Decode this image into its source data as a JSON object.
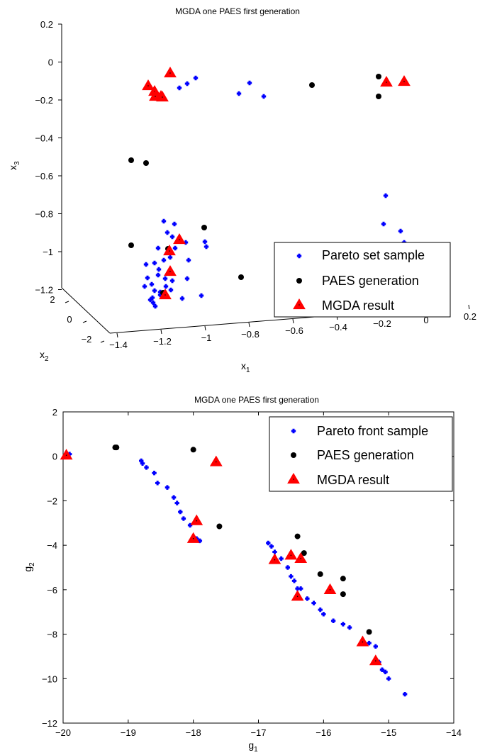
{
  "chart_data": [
    {
      "type": "scatter",
      "title": "MGDA one PAES first generation",
      "xlabel": "x",
      "xlabel_sub": "1",
      "ylabel": "x",
      "ylabel_sub": "2",
      "zlabel": "x",
      "zlabel_sub": "3",
      "xticks": [
        "−1.4",
        "−1.2",
        "−1",
        "−0.8",
        "−0.6",
        "−0.4",
        "−0.2",
        "0",
        "0.2"
      ],
      "yticks": [
        "2",
        "0",
        "−2"
      ],
      "zticks": [
        "0.2",
        "0",
        "−0.2",
        "−0.4",
        "−0.6",
        "−0.8",
        "−1",
        "−1.2"
      ],
      "legend_position": "bottom-right",
      "series": [
        {
          "name": "Pareto set sample",
          "marker": "plus",
          "color": "#0000ff",
          "points": [
            [
              253,
              124
            ],
            [
              264,
              118
            ],
            [
              276,
              110
            ],
            [
              337,
              132
            ],
            [
              352,
              117
            ],
            [
              372,
              136
            ],
            [
              544,
              276
            ],
            [
              541,
              316
            ],
            [
              565,
              326
            ],
            [
              570,
              342
            ],
            [
              231,
              312
            ],
            [
              246,
              316
            ],
            [
              236,
              328
            ],
            [
              243,
              334
            ],
            [
              223,
              350
            ],
            [
              247,
              350
            ],
            [
              262,
              342
            ],
            [
              218,
              371
            ],
            [
              231,
              367
            ],
            [
              240,
              363
            ],
            [
              289,
              341
            ],
            [
              291,
              348
            ],
            [
              224,
              380
            ],
            [
              206,
              373
            ],
            [
              208,
              392
            ],
            [
              223,
              388
            ],
            [
              233,
              393
            ],
            [
              214,
              401
            ],
            [
              234,
              404
            ],
            [
              241,
              409
            ],
            [
              204,
              404
            ],
            [
              218,
              410
            ],
            [
              226,
              416
            ],
            [
              243,
              396
            ],
            [
              216,
              427
            ],
            [
              212,
              423
            ],
            [
              226,
              412
            ],
            [
              232,
              417
            ],
            [
              257,
              421
            ],
            [
              264,
              393
            ],
            [
              266,
              367
            ],
            [
              284,
              417
            ],
            [
              219,
              432
            ],
            [
              215,
              420
            ]
          ]
        },
        {
          "name": "PAES generation",
          "marker": "dot",
          "color": "#000000",
          "points": [
            [
              185,
              226
            ],
            [
              206,
              230
            ],
            [
              534,
              108
            ],
            [
              534,
              136
            ],
            [
              440,
              120
            ],
            [
              288,
              321
            ],
            [
              185,
              346
            ],
            [
              237,
              351
            ],
            [
              340,
              391
            ],
            [
              230,
              413
            ]
          ]
        },
        {
          "name": "MGDA result",
          "marker": "triangle",
          "color": "#ff0000",
          "points": [
            [
              240,
              103
            ],
            [
              209,
              121
            ],
            [
              218,
              129
            ],
            [
              219,
              136
            ],
            [
              227,
              136
            ],
            [
              229,
              137
            ],
            [
              545,
              116
            ],
            [
              570,
              115
            ],
            [
              253,
              338
            ],
            [
              239,
              354
            ],
            [
              240,
              383
            ],
            [
              233,
              416
            ]
          ]
        }
      ]
    },
    {
      "type": "scatter",
      "title": "MGDA one PAES first generation",
      "xlabel": "g",
      "xlabel_sub": "1",
      "ylabel": "g",
      "ylabel_sub": "2",
      "xlim": [
        -20,
        -14
      ],
      "ylim": [
        -12,
        2
      ],
      "xticks": [
        "−20",
        "−19",
        "−18",
        "−17",
        "−16",
        "−15",
        "−14"
      ],
      "yticks": [
        "2",
        "0",
        "−2",
        "−4",
        "−6",
        "−8",
        "−10",
        "−12"
      ],
      "legend_position": "top-right",
      "series": [
        {
          "name": "Pareto front sample",
          "marker": "plus",
          "color": "#0000ff",
          "points": [
            [
              -19.9,
              0.1
            ],
            [
              -18.8,
              -0.2
            ],
            [
              -18.78,
              -0.32
            ],
            [
              -18.72,
              -0.5
            ],
            [
              -18.6,
              -0.75
            ],
            [
              -18.55,
              -1.2
            ],
            [
              -18.4,
              -1.4
            ],
            [
              -18.3,
              -1.85
            ],
            [
              -18.25,
              -2.1
            ],
            [
              -18.2,
              -2.5
            ],
            [
              -18.15,
              -2.8
            ],
            [
              -18.05,
              -3.1
            ],
            [
              -18.0,
              -3.65
            ],
            [
              -17.95,
              -3.7
            ],
            [
              -17.9,
              -3.8
            ],
            [
              -16.85,
              -3.9
            ],
            [
              -16.8,
              -4.05
            ],
            [
              -16.75,
              -4.3
            ],
            [
              -16.65,
              -4.6
            ],
            [
              -16.55,
              -5.0
            ],
            [
              -16.5,
              -5.4
            ],
            [
              -16.45,
              -5.6
            ],
            [
              -16.4,
              -5.95
            ],
            [
              -16.35,
              -5.95
            ],
            [
              -16.25,
              -6.4
            ],
            [
              -16.15,
              -6.6
            ],
            [
              -16.05,
              -6.9
            ],
            [
              -16.0,
              -7.1
            ],
            [
              -15.85,
              -7.4
            ],
            [
              -15.7,
              -7.55
            ],
            [
              -15.6,
              -7.7
            ],
            [
              -15.3,
              -8.4
            ],
            [
              -15.2,
              -8.55
            ],
            [
              -15.15,
              -9.25
            ],
            [
              -15.1,
              -9.6
            ],
            [
              -15.05,
              -9.7
            ],
            [
              -15.0,
              -10.0
            ],
            [
              -14.75,
              -10.7
            ]
          ]
        },
        {
          "name": "PAES generation",
          "marker": "dot",
          "color": "#000000",
          "points": [
            [
              -19.2,
              0.4
            ],
            [
              -19.18,
              0.4
            ],
            [
              -18.0,
              0.3
            ],
            [
              -17.6,
              -3.15
            ],
            [
              -16.4,
              -3.6
            ],
            [
              -16.3,
              -4.35
            ],
            [
              -16.05,
              -5.3
            ],
            [
              -15.7,
              -5.5
            ],
            [
              -15.7,
              -6.2
            ],
            [
              -15.3,
              -7.9
            ]
          ]
        },
        {
          "name": "MGDA result",
          "marker": "triangle",
          "color": "#ff0000",
          "points": [
            [
              -19.95,
              0.05
            ],
            [
              -17.65,
              -0.25
            ],
            [
              -17.95,
              -2.9
            ],
            [
              -18.0,
              -3.7
            ],
            [
              -16.75,
              -4.65
            ],
            [
              -16.5,
              -4.45
            ],
            [
              -16.35,
              -4.6
            ],
            [
              -16.4,
              -6.3
            ],
            [
              -15.9,
              -6.0
            ],
            [
              -15.4,
              -8.35
            ],
            [
              -15.2,
              -9.2
            ]
          ]
        }
      ]
    }
  ]
}
